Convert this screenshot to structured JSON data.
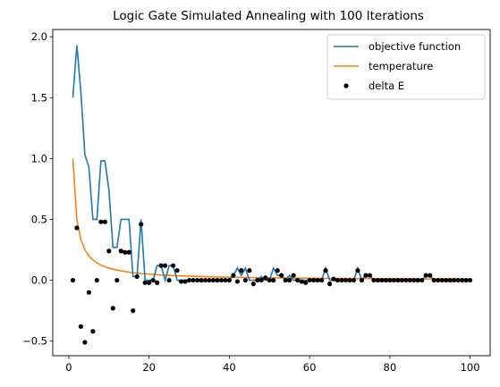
{
  "chart_data": {
    "type": "line",
    "title": "Logic Gate Simulated Annealing with 100 Iterations",
    "xlabel": "",
    "ylabel": "",
    "xlim": [
      -4,
      105
    ],
    "ylim": [
      -0.62,
      2.06
    ],
    "x_ticks": [
      0,
      20,
      40,
      60,
      80,
      100
    ],
    "x_tick_labels": [
      "0",
      "20",
      "40",
      "60",
      "80",
      "100"
    ],
    "y_ticks": [
      -0.5,
      0.0,
      0.5,
      1.0,
      1.5,
      2.0
    ],
    "y_tick_labels": [
      "−0.5",
      "0.0",
      "0.5",
      "1.0",
      "1.5",
      "2.0"
    ],
    "grid": false,
    "legend_position": "top-right",
    "x": [
      1,
      2,
      3,
      4,
      5,
      6,
      7,
      8,
      9,
      10,
      11,
      12,
      13,
      14,
      15,
      16,
      17,
      18,
      19,
      20,
      21,
      22,
      23,
      24,
      25,
      26,
      27,
      28,
      29,
      30,
      31,
      32,
      33,
      34,
      35,
      36,
      37,
      38,
      39,
      40,
      41,
      42,
      43,
      44,
      45,
      46,
      47,
      48,
      49,
      50,
      51,
      52,
      53,
      54,
      55,
      56,
      57,
      58,
      59,
      60,
      61,
      62,
      63,
      64,
      65,
      66,
      67,
      68,
      69,
      70,
      71,
      72,
      73,
      74,
      75,
      76,
      77,
      78,
      79,
      80,
      81,
      82,
      83,
      84,
      85,
      86,
      87,
      88,
      89,
      90,
      91,
      92,
      93,
      94,
      95,
      96,
      97,
      98,
      99,
      100
    ],
    "series": [
      {
        "name": "objective function",
        "kind": "line",
        "color": "#1f77b4",
        "values": [
          1.5,
          1.93,
          1.55,
          1.03,
          0.93,
          0.5,
          0.5,
          0.98,
          0.98,
          0.74,
          0.27,
          0.27,
          0.5,
          0.5,
          0.5,
          0.03,
          0.03,
          0.5,
          0.0,
          0.0,
          0.0,
          0.12,
          0.12,
          0.0,
          0.12,
          0.12,
          0.0,
          0.0,
          0.0,
          0.0,
          0.0,
          0.0,
          0.0,
          0.0,
          0.0,
          0.0,
          0.0,
          0.0,
          0.0,
          0.0,
          0.04,
          0.1,
          0.04,
          0.1,
          0.0,
          0.0,
          0.0,
          0.03,
          0.0,
          0.0,
          0.1,
          0.04,
          0.04,
          0.0,
          0.04,
          0.0,
          0.0,
          0.0,
          0.0,
          0.0,
          0.0,
          0.0,
          0.0,
          0.1,
          0.0,
          0.0,
          0.0,
          0.0,
          0.0,
          0.0,
          0.0,
          0.1,
          0.0,
          0.04,
          0.04,
          0.0,
          0.0,
          0.0,
          0.0,
          0.0,
          0.0,
          0.0,
          0.0,
          0.0,
          0.0,
          0.0,
          0.0,
          0.0,
          0.04,
          0.04,
          0.0,
          0.0,
          0.0,
          0.0,
          0.0,
          0.0,
          0.0,
          0.0,
          0.0,
          0.0
        ]
      },
      {
        "name": "temperature",
        "kind": "line",
        "color": "#ff7f0e",
        "formula": "1/x"
      },
      {
        "name": "delta E",
        "kind": "scatter",
        "color": "#000000",
        "values": [
          0.0,
          0.43,
          -0.38,
          -0.51,
          -0.1,
          -0.42,
          0.0,
          0.48,
          0.48,
          0.24,
          -0.23,
          0.0,
          0.24,
          0.23,
          0.23,
          -0.25,
          0.03,
          0.46,
          -0.02,
          -0.02,
          0.0,
          -0.02,
          0.12,
          0.12,
          0.0,
          0.12,
          0.08,
          -0.01,
          -0.01,
          0.0,
          0.0,
          0.0,
          0.0,
          0.0,
          0.0,
          0.0,
          0.0,
          0.0,
          0.0,
          0.0,
          0.04,
          -0.01,
          0.08,
          0.0,
          0.08,
          -0.03,
          0.0,
          0.0,
          0.02,
          0.0,
          0.0,
          0.08,
          0.04,
          0.0,
          0.0,
          0.04,
          0.0,
          -0.01,
          -0.02,
          0.0,
          0.0,
          0.0,
          0.0,
          0.08,
          -0.03,
          0.01,
          0.0,
          0.0,
          0.0,
          0.0,
          0.0,
          0.08,
          0.0,
          0.04,
          0.04,
          0.0,
          0.0,
          0.0,
          0.0,
          0.0,
          0.0,
          0.0,
          0.0,
          0.0,
          0.0,
          0.0,
          0.0,
          0.0,
          0.04,
          0.04,
          0.0,
          0.0,
          0.0,
          0.0,
          0.0,
          0.0,
          0.0,
          0.0,
          0.0,
          0.0
        ]
      }
    ]
  }
}
